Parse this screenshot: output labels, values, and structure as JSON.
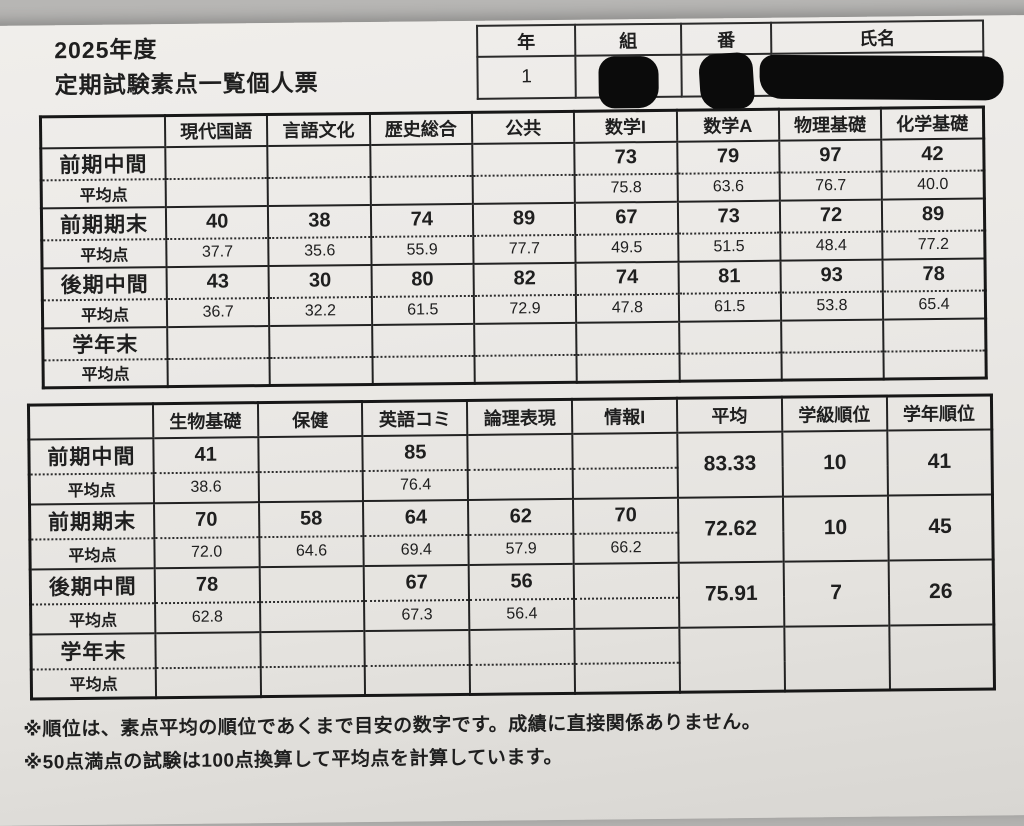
{
  "page": {
    "title_line1": "2025年度",
    "title_line2": "定期試験素点一覧個人票"
  },
  "student": {
    "headers": [
      "年",
      "組",
      "番",
      "氏名"
    ],
    "year_value": "1",
    "redacted_note": "組・番・氏名は黒塗り"
  },
  "table1": {
    "avg_label": "平均点",
    "subjects": [
      "現代国語",
      "言語文化",
      "歴史総合",
      "公共",
      "数学I",
      "数学A",
      "物理基礎",
      "化学基礎"
    ],
    "periods": [
      {
        "label": "前期中間",
        "scores": [
          "",
          "",
          "",
          "",
          "73",
          "79",
          "97",
          "42"
        ],
        "averages": [
          "",
          "",
          "",
          "",
          "75.8",
          "63.6",
          "76.7",
          "40.0"
        ]
      },
      {
        "label": "前期期末",
        "scores": [
          "40",
          "38",
          "74",
          "89",
          "67",
          "73",
          "72",
          "89"
        ],
        "averages": [
          "37.7",
          "35.6",
          "55.9",
          "77.7",
          "49.5",
          "51.5",
          "48.4",
          "77.2"
        ]
      },
      {
        "label": "後期中間",
        "scores": [
          "43",
          "30",
          "80",
          "82",
          "74",
          "81",
          "93",
          "78"
        ],
        "averages": [
          "36.7",
          "32.2",
          "61.5",
          "72.9",
          "47.8",
          "61.5",
          "53.8",
          "65.4"
        ]
      },
      {
        "label": "学年末",
        "scores": [
          "",
          "",
          "",
          "",
          "",
          "",
          "",
          ""
        ],
        "averages": [
          "",
          "",
          "",
          "",
          "",
          "",
          "",
          ""
        ]
      }
    ]
  },
  "table2": {
    "avg_label": "平均点",
    "subjects": [
      "生物基礎",
      "保健",
      "英語コミ",
      "論理表現",
      "情報I"
    ],
    "summary_headers": [
      "平均",
      "学級順位",
      "学年順位"
    ],
    "periods": [
      {
        "label": "前期中間",
        "scores": [
          "41",
          "",
          "85",
          "",
          ""
        ],
        "averages": [
          "38.6",
          "",
          "76.4",
          "",
          ""
        ],
        "summary": [
          "83.33",
          "10",
          "41"
        ]
      },
      {
        "label": "前期期末",
        "scores": [
          "70",
          "58",
          "64",
          "62",
          "70"
        ],
        "averages": [
          "72.0",
          "64.6",
          "69.4",
          "57.9",
          "66.2"
        ],
        "summary": [
          "72.62",
          "10",
          "45"
        ]
      },
      {
        "label": "後期中間",
        "scores": [
          "78",
          "",
          "67",
          "56",
          ""
        ],
        "averages": [
          "62.8",
          "",
          "67.3",
          "56.4",
          ""
        ],
        "summary": [
          "75.91",
          "7",
          "26"
        ]
      },
      {
        "label": "学年末",
        "scores": [
          "",
          "",
          "",
          "",
          ""
        ],
        "averages": [
          "",
          "",
          "",
          "",
          ""
        ],
        "summary": [
          "",
          "",
          ""
        ]
      }
    ]
  },
  "notes": [
    "※順位は、素点平均の順位であくまで目安の数字です。成績に直接関係ありません。",
    "※50点満点の試験は100点換算して平均点を計算しています。"
  ]
}
